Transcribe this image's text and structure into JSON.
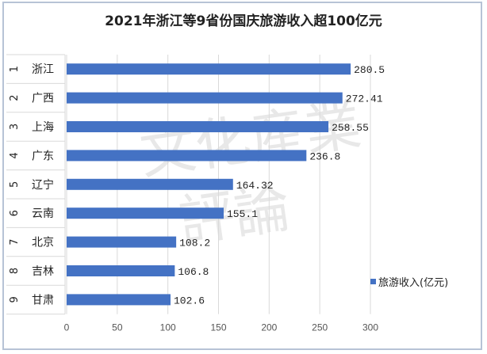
{
  "chart_data": {
    "type": "bar",
    "orientation": "horizontal",
    "title": "2021年浙江等9省份国庆旅游收入超100亿元",
    "ranks": [
      "1",
      "2",
      "3",
      "4",
      "5",
      "6",
      "7",
      "8",
      "9"
    ],
    "categories": [
      "浙江",
      "广西",
      "上海",
      "广东",
      "辽宁",
      "云南",
      "北京",
      "吉林",
      "甘肃"
    ],
    "series": [
      {
        "name": "旅游收入(亿元)",
        "values": [
          280.5,
          272.41,
          258.55,
          236.8,
          164.32,
          155.1,
          108.2,
          106.8,
          102.6
        ],
        "labels": [
          "280.5",
          "272.41",
          "258.55",
          "236.8",
          "164.32",
          "155.1",
          "108.2",
          "106.8",
          "102.6"
        ],
        "color": "#4472c4"
      }
    ],
    "xlim": [
      0,
      300
    ],
    "xticks": [
      0,
      50,
      100,
      150,
      200,
      250,
      300
    ],
    "grid": true,
    "legend": "right"
  },
  "watermark": "文化产业评论"
}
